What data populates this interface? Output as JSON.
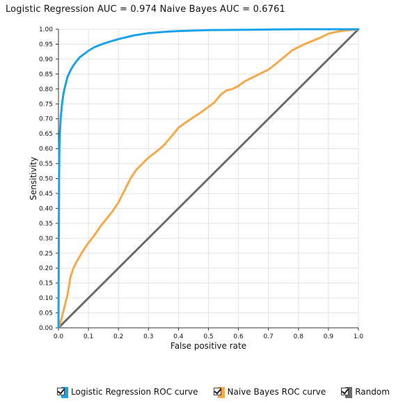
{
  "chart_data": {
    "type": "line",
    "title": "Logistic Regression AUC = 0.974 Naive Bayes AUC = 0.6761",
    "xlabel": "False positive rate",
    "ylabel": "Sensitivity",
    "xlim": [
      0,
      1
    ],
    "ylim": [
      0,
      1
    ],
    "x_ticks": [
      0.0,
      0.1,
      0.2,
      0.3,
      0.4,
      0.5,
      0.6,
      0.7,
      0.8,
      0.9,
      1.0
    ],
    "x_tick_labels": [
      "0.0",
      "0.1",
      "0.2",
      "0.3",
      "0.4",
      "0.5",
      "0.6",
      "0.7",
      "0.8",
      "0.9",
      "1.0"
    ],
    "y_ticks": [
      0.0,
      0.05,
      0.1,
      0.15,
      0.2,
      0.25,
      0.3,
      0.35,
      0.4,
      0.45,
      0.5,
      0.55,
      0.6,
      0.65,
      0.7,
      0.75,
      0.8,
      0.85,
      0.9,
      0.95,
      1.0
    ],
    "y_tick_labels": [
      "0.00",
      "0.05",
      "0.10",
      "0.15",
      "0.20",
      "0.25",
      "0.30",
      "0.35",
      "0.40",
      "0.45",
      "0.50",
      "0.55",
      "0.60",
      "0.65",
      "0.70",
      "0.75",
      "0.80",
      "0.85",
      "0.90",
      "0.95",
      "1.00"
    ],
    "grid": true,
    "legend_position": "bottom",
    "series": [
      {
        "name": "Logistic Regression ROC curve",
        "color": "#1aa3e8",
        "x": [
          0,
          0.002,
          0.003,
          0.005,
          0.008,
          0.012,
          0.016,
          0.02,
          0.025,
          0.03,
          0.04,
          0.05,
          0.06,
          0.07,
          0.08,
          0.1,
          0.12,
          0.14,
          0.16,
          0.18,
          0.2,
          0.25,
          0.3,
          0.35,
          0.4,
          0.5,
          0.6,
          0.7,
          0.8,
          0.9,
          1.0
        ],
        "y": [
          0,
          0.5,
          0.6,
          0.66,
          0.71,
          0.75,
          0.78,
          0.8,
          0.82,
          0.84,
          0.862,
          0.879,
          0.893,
          0.905,
          0.913,
          0.928,
          0.94,
          0.948,
          0.955,
          0.961,
          0.967,
          0.979,
          0.987,
          0.991,
          0.994,
          0.997,
          0.998,
          0.999,
          1.0,
          1.0,
          1.0
        ]
      },
      {
        "name": "Naive Bayes ROC curve",
        "color": "#f7a84a",
        "x": [
          0,
          0.01,
          0.02,
          0.03,
          0.04,
          0.05,
          0.06,
          0.08,
          0.1,
          0.12,
          0.14,
          0.16,
          0.18,
          0.2,
          0.22,
          0.24,
          0.26,
          0.28,
          0.3,
          0.32,
          0.35,
          0.38,
          0.4,
          0.42,
          0.45,
          0.48,
          0.5,
          0.52,
          0.54,
          0.56,
          0.58,
          0.6,
          0.62,
          0.65,
          0.68,
          0.7,
          0.72,
          0.75,
          0.78,
          0.8,
          0.82,
          0.85,
          0.88,
          0.9,
          0.92,
          0.95,
          0.98,
          1.0
        ],
        "y": [
          0,
          0.03,
          0.07,
          0.11,
          0.17,
          0.2,
          0.22,
          0.255,
          0.285,
          0.31,
          0.34,
          0.365,
          0.39,
          0.42,
          0.46,
          0.5,
          0.53,
          0.55,
          0.57,
          0.585,
          0.61,
          0.645,
          0.67,
          0.685,
          0.705,
          0.725,
          0.74,
          0.755,
          0.78,
          0.795,
          0.8,
          0.81,
          0.825,
          0.84,
          0.855,
          0.865,
          0.88,
          0.905,
          0.93,
          0.94,
          0.95,
          0.962,
          0.975,
          0.985,
          0.99,
          0.995,
          0.998,
          1.0
        ]
      },
      {
        "name": "Random",
        "color": "#6b6b6b",
        "x": [
          0,
          1
        ],
        "y": [
          0,
          1
        ]
      }
    ]
  }
}
